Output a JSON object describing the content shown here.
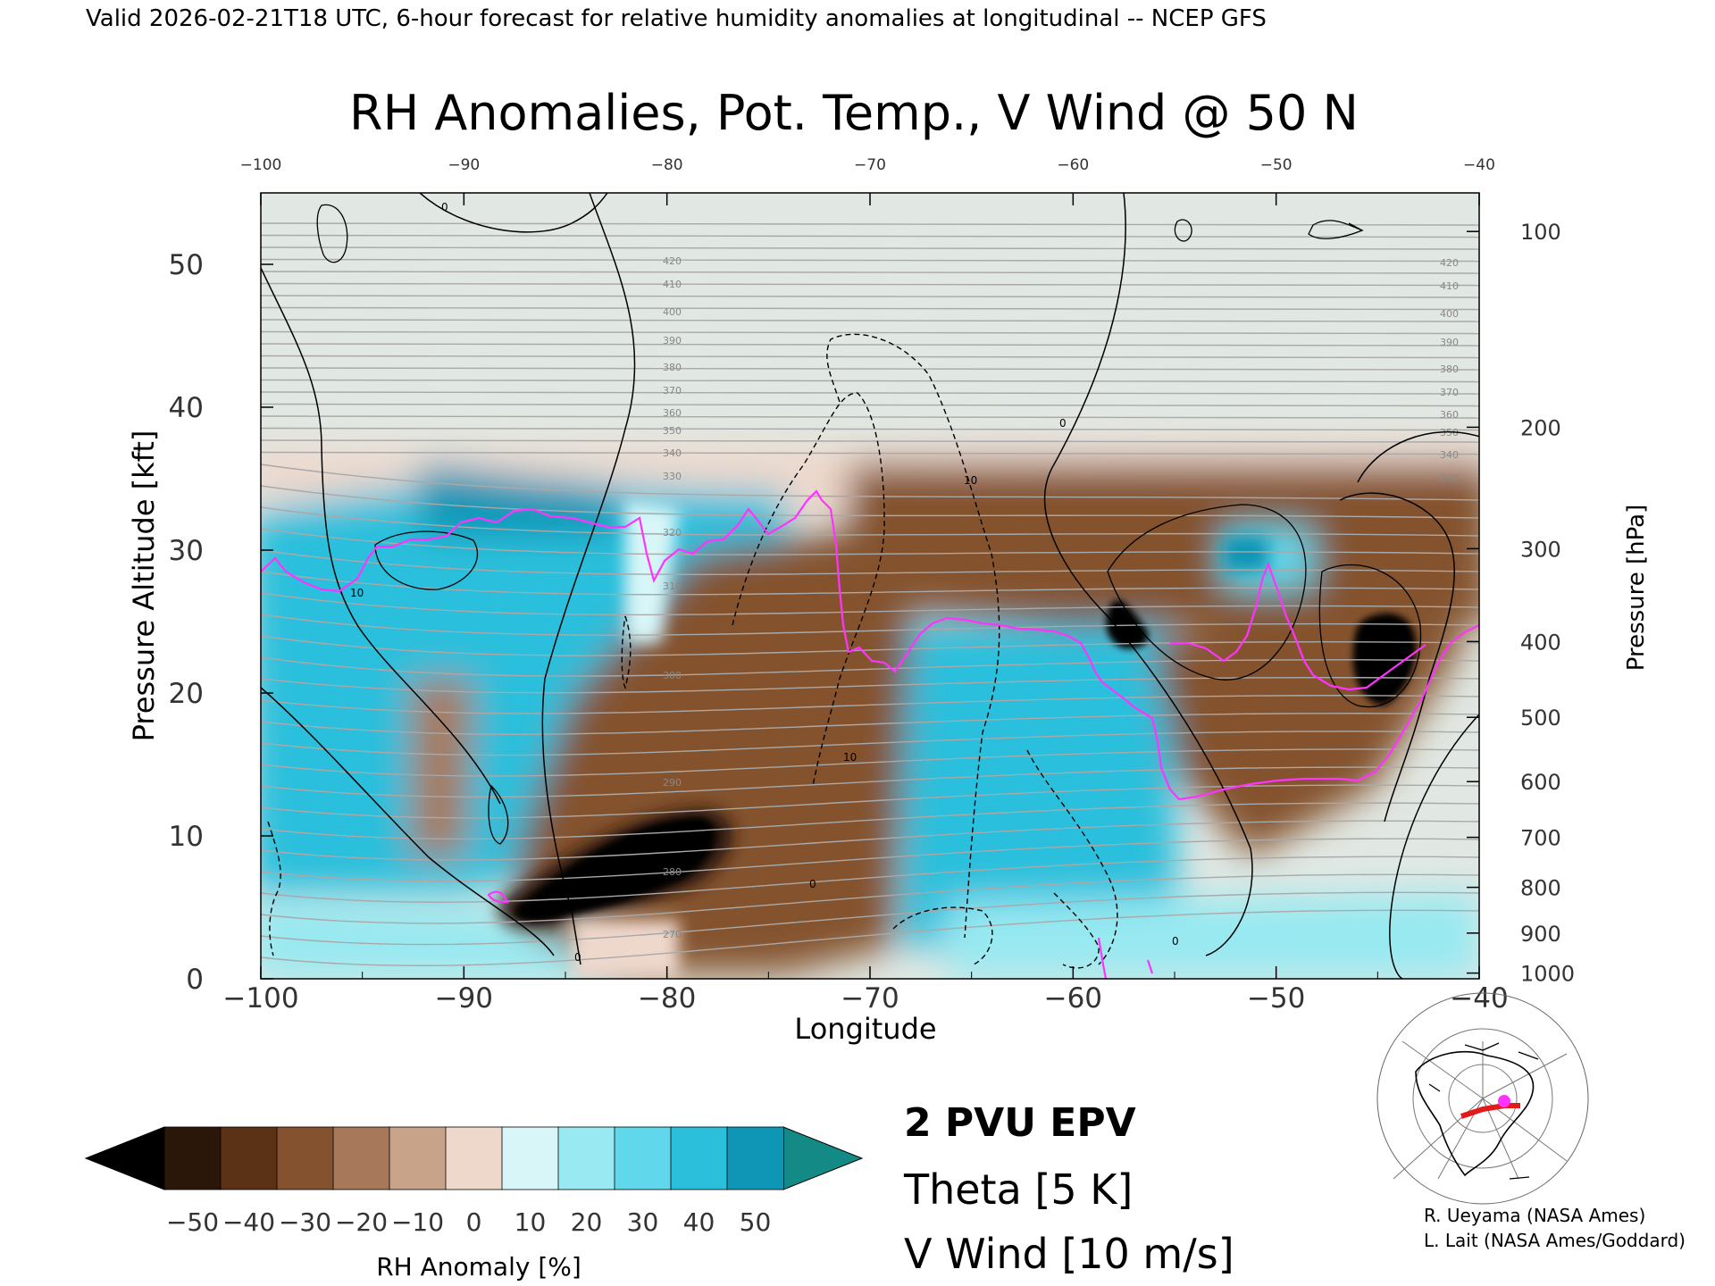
{
  "chart_data": {
    "type": "heatmap",
    "header": "Valid 2026-02-21T18 UTC, 6-hour forecast for relative humidity anomalies at longitudinal -- NCEP GFS",
    "title": "RH Anomalies, Pot. Temp., V Wind @ 50 N",
    "xlabel": "Longitude",
    "ylabel": "Pressure Altitude [kft]",
    "ylabel_right": "Pressure [hPa]",
    "xlim": [
      -100,
      -40
    ],
    "ylim": [
      0,
      55
    ],
    "x_ticks": [
      -100,
      -90,
      -80,
      -70,
      -60,
      -50,
      -40
    ],
    "x_tick_labels": [
      "−100",
      "−90",
      "−80",
      "−70",
      "−60",
      "−50",
      "−40"
    ],
    "y_ticks": [
      0,
      10,
      20,
      30,
      40,
      50
    ],
    "pressure_ticks": [
      {
        "label": "100",
        "kft": 52.3
      },
      {
        "label": "200",
        "kft": 38.6
      },
      {
        "label": "300",
        "kft": 30.1
      },
      {
        "label": "400",
        "kft": 23.6
      },
      {
        "label": "500",
        "kft": 18.3
      },
      {
        "label": "600",
        "kft": 13.8
      },
      {
        "label": "700",
        "kft": 9.9
      },
      {
        "label": "800",
        "kft": 6.4
      },
      {
        "label": "900",
        "kft": 3.2
      },
      {
        "label": "1000",
        "kft": 0.4
      }
    ],
    "colorbar": {
      "label": "RH Anomaly [%]",
      "tick_labels": [
        "−50",
        "−40",
        "−30",
        "−20",
        "−10",
        "0",
        "10",
        "20",
        "30",
        "40",
        "50"
      ],
      "levels": [
        -50,
        -40,
        -30,
        -20,
        -10,
        0,
        10,
        20,
        30,
        40,
        50
      ],
      "colors": [
        "#2b160a",
        "#5c3217",
        "#84522f",
        "#a7785a",
        "#c8a38a",
        "#eed8cc",
        "#d8f6f8",
        "#98e9f1",
        "#60d7ea",
        "#2cbfdc",
        "#0f95b5"
      ],
      "under_color": "#000000",
      "over_color": "#138a86"
    },
    "legend": [
      {
        "label": "2 PVU EPV",
        "color": "#ff33ff"
      },
      {
        "label": "Theta [5 K]",
        "color": "#aaaaaa"
      },
      {
        "label": "V Wind [10 m/s]",
        "color": "#000000"
      }
    ],
    "theta_labels": [
      "420",
      "410",
      "400",
      "390",
      "380",
      "370",
      "360",
      "350",
      "340",
      "330",
      "320",
      "310",
      "300",
      "290",
      "280",
      "270"
    ],
    "v_wind_labels": [
      "0",
      "10",
      "-10"
    ],
    "credits": [
      "R. Ueyama (NASA Ames)",
      "L. Lait (NASA Ames/Goddard)"
    ]
  }
}
